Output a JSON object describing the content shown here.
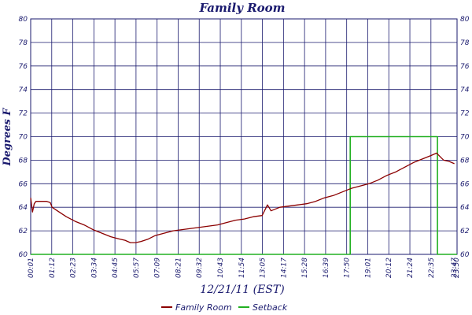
{
  "chart_data": {
    "type": "line",
    "title": "Family Room",
    "xlabel": "12/21/11 (EST)",
    "ylabel": "Degrees F",
    "ylim": [
      60,
      80
    ],
    "y_ticks": [
      60,
      62,
      64,
      66,
      68,
      70,
      72,
      74,
      76,
      78,
      80
    ],
    "x_tick_labels": [
      "00:01",
      "01:12",
      "02:23",
      "03:34",
      "04:45",
      "05:57",
      "07:09",
      "08:21",
      "09:32",
      "10:43",
      "11:54",
      "13:05",
      "14:17",
      "15:28",
      "16:39",
      "17:50",
      "19:01",
      "20:12",
      "21:24",
      "22:35",
      "23:47",
      "23:50"
    ],
    "grid": true,
    "legend_position": "bottom",
    "colors": {
      "family_room": "#8b0000",
      "setback": "#22b022",
      "grid": "#1a1a6e",
      "text": "#1a1a6e"
    },
    "series": [
      {
        "name": "Family Room",
        "x": [
          0,
          0.1,
          0.2,
          0.3,
          0.4,
          0.6,
          0.9,
          1.1,
          1.2,
          1.5,
          2.0,
          2.5,
          3.0,
          3.5,
          4.0,
          4.5,
          5.0,
          5.3,
          5.6,
          5.9,
          6.2,
          6.6,
          7.0,
          7.5,
          8.0,
          8.5,
          9.0,
          9.5,
          10.0,
          10.5,
          11.0,
          11.5,
          12.0,
          12.5,
          13.0,
          13.3,
          13.5,
          14.0,
          14.5,
          15.0,
          15.5,
          16.0,
          16.5,
          17.0,
          17.5,
          18.0,
          18.5,
          19.0,
          19.5,
          20.0,
          20.5,
          21.0,
          21.5,
          22.0,
          22.5,
          22.8,
          23.0,
          23.2,
          23.5,
          23.8
        ],
        "values": [
          64.8,
          63.6,
          64.3,
          64.5,
          64.5,
          64.5,
          64.5,
          64.4,
          64.0,
          63.7,
          63.2,
          62.8,
          62.5,
          62.1,
          61.8,
          61.5,
          61.3,
          61.2,
          61.0,
          61.0,
          61.1,
          61.3,
          61.6,
          61.8,
          62.0,
          62.1,
          62.2,
          62.3,
          62.4,
          62.5,
          62.7,
          62.9,
          63.0,
          63.2,
          63.3,
          64.2,
          63.7,
          64.0,
          64.1,
          64.2,
          64.3,
          64.5,
          64.8,
          65.0,
          65.3,
          65.6,
          65.8,
          66.0,
          66.3,
          66.7,
          67.0,
          67.4,
          67.8,
          68.1,
          68.4,
          68.6,
          68.3,
          68.0,
          67.9,
          67.7
        ]
      },
      {
        "name": "Setback",
        "x": [
          0,
          17.95,
          17.95,
          22.85,
          22.85,
          23.95
        ],
        "values": [
          60,
          60,
          70,
          70,
          60,
          60
        ]
      }
    ]
  }
}
